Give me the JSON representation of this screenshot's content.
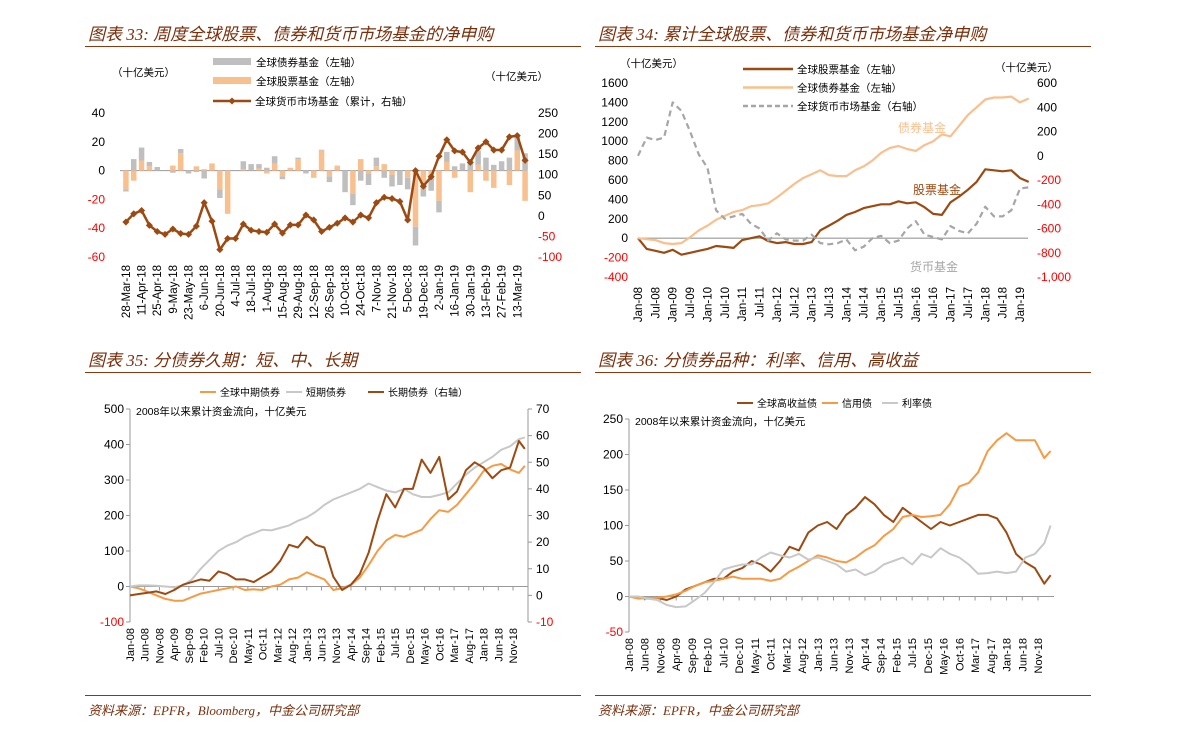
{
  "colors": {
    "brown": "#9C4A12",
    "light_orange": "#F9C08F",
    "orange": "#F59B45",
    "gray": "#BFBFBF",
    "light_gray": "#C8C8C8",
    "negative": "#FF0000",
    "title": "#7A2F0B"
  },
  "fig33": {
    "title": "图表 33: 周度全球股票、债券和货币市场基金的净申购",
    "chart_data": {
      "type": "bar",
      "left_unit": "（十亿美元）",
      "right_unit": "（十亿美元）",
      "ylim_left": [
        -60,
        40
      ],
      "yticks_left": [
        40,
        20,
        0,
        -20,
        -40,
        -60
      ],
      "ylim_right": [
        -100,
        250
      ],
      "yticks_right": [
        250,
        200,
        150,
        100,
        50,
        0,
        -50,
        -100
      ],
      "tick_labels": [
        "28-Mar-18",
        "11-Apr-18",
        "25-Apr-18",
        "9-May-18",
        "23-May-18",
        "6-Jun-18",
        "20-Jun-18",
        "4-Jul-18",
        "18-Jul-18",
        "1-Aug-18",
        "15-Aug-18",
        "29-Aug-18",
        "12-Sep-18",
        "26-Sep-18",
        "10-Oct-18",
        "24-Oct-18",
        "7-Nov-18",
        "21-Nov-18",
        "5-Dec-18",
        "19-Dec-18",
        "2-Jan-19",
        "16-Jan-19",
        "30-Jan-19",
        "13-Feb-19",
        "27-Feb-19",
        "13-Mar-19"
      ],
      "series": [
        {
          "name": "全球债券基金（左轴）",
          "kind": "bar",
          "color": "#BFBFBF",
          "values": [
            -1.5,
            8,
            9,
            3,
            2.5,
            0,
            -1.5,
            3,
            -2,
            -1,
            -5.5,
            0,
            -6,
            0,
            0,
            5.5,
            4.5,
            3,
            2,
            5,
            -2,
            0,
            1,
            -2,
            0,
            0.5,
            -4,
            0,
            -15,
            -8,
            -7,
            -8,
            6,
            -5,
            -8,
            -10,
            -8,
            -13,
            -9,
            -9,
            -8,
            7,
            3,
            5,
            5,
            10,
            9,
            4,
            6.5,
            9,
            10,
            12
          ]
        },
        {
          "name": "全球股票基金（左轴）",
          "kind": "bar",
          "color": "#F9C08F",
          "values": [
            -13,
            -7,
            7,
            3,
            0,
            0,
            3.5,
            12,
            0,
            3,
            1,
            5,
            -13,
            -30,
            0,
            1,
            0,
            1.5,
            -2,
            5,
            -4,
            2,
            8,
            0,
            -5,
            14,
            -4,
            3.5,
            0,
            -16,
            8,
            -2,
            3,
            4.5,
            -3,
            0,
            -5,
            -39,
            -9,
            -5,
            -21,
            6,
            -5,
            0,
            -15,
            4,
            -7,
            -12,
            0,
            -10,
            14,
            -21
          ]
        },
        {
          "name": "全球货币市场基金（累计，右轴）",
          "kind": "line",
          "color": "#9C4A12",
          "values": [
            -15,
            5,
            13,
            -23,
            -38,
            -45,
            -32,
            -43,
            -45,
            -25,
            32,
            -13,
            -82,
            -55,
            -55,
            -20,
            -35,
            -38,
            -40,
            -20,
            -42,
            -22,
            -22,
            2,
            -10,
            -38,
            -28,
            -18,
            -5,
            -15,
            2,
            -5,
            32,
            45,
            42,
            35,
            -10,
            110,
            72,
            95,
            145,
            185,
            158,
            155,
            130,
            165,
            180,
            160,
            160,
            192,
            195,
            135
          ]
        }
      ]
    }
  },
  "fig34": {
    "title": "图表 34: 累计全球股票、债券和货币市场基金净申购",
    "chart_data": {
      "type": "line",
      "left_unit": "（十亿美元）",
      "right_unit": "（十亿美元）",
      "ylim_left": [
        -400,
        1600
      ],
      "yticks_left": [
        1600,
        1400,
        1200,
        1000,
        800,
        600,
        400,
        200,
        0,
        -200,
        -400
      ],
      "ylim_right": [
        -1000,
        600
      ],
      "yticks_right": [
        "600",
        "400",
        "200",
        "0",
        "-200",
        "-400",
        "-600",
        "-800",
        "-1,000"
      ],
      "tick_labels": [
        "Jan-08",
        "Jul-08",
        "Jan-09",
        "Jul-09",
        "Jan-10",
        "Jul-10",
        "Jan-11",
        "Jul-11",
        "Jan-12",
        "Jul-12",
        "Jan-13",
        "Jul-13",
        "Jan-14",
        "Jul-14",
        "Jan-15",
        "Jul-15",
        "Jan-16",
        "Jul-16",
        "Jan-17",
        "Jul-17",
        "Jan-18",
        "Jul-18",
        "Jan-19"
      ],
      "x": [
        "2008-01",
        "2008-04",
        "2008-07",
        "2008-10",
        "2009-01",
        "2009-04",
        "2009-07",
        "2009-10",
        "2010-01",
        "2010-04",
        "2010-07",
        "2010-10",
        "2011-01",
        "2011-04",
        "2011-07",
        "2011-10",
        "2012-01",
        "2012-04",
        "2012-07",
        "2012-10",
        "2013-01",
        "2013-04",
        "2013-07",
        "2013-10",
        "2014-01",
        "2014-04",
        "2014-07",
        "2014-10",
        "2015-01",
        "2015-04",
        "2015-07",
        "2015-10",
        "2016-01",
        "2016-04",
        "2016-07",
        "2016-10",
        "2017-01",
        "2017-04",
        "2017-07",
        "2017-10",
        "2018-01",
        "2018-04",
        "2018-07",
        "2018-10",
        "2019-01",
        "2019-04"
      ],
      "series": [
        {
          "name": "全球股票基金（左轴）",
          "axis": "left",
          "color": "#9C4A12",
          "dash": false,
          "values": [
            0,
            -110,
            -130,
            -150,
            -120,
            -170,
            -150,
            -130,
            -110,
            -80,
            -90,
            -100,
            -20,
            0,
            20,
            -30,
            -50,
            -40,
            -60,
            -60,
            -40,
            80,
            130,
            180,
            240,
            270,
            310,
            330,
            350,
            350,
            380,
            360,
            370,
            320,
            250,
            240,
            370,
            430,
            500,
            580,
            710,
            700,
            690,
            700,
            620,
            580
          ]
        },
        {
          "name": "全球债券基金（左轴）",
          "axis": "left",
          "color": "#F9C08F",
          "dash": false,
          "values": [
            0,
            -10,
            -20,
            -50,
            -60,
            -50,
            10,
            80,
            130,
            190,
            230,
            270,
            290,
            330,
            340,
            360,
            420,
            490,
            560,
            620,
            660,
            700,
            650,
            640,
            640,
            700,
            740,
            800,
            880,
            930,
            950,
            920,
            900,
            960,
            1000,
            1070,
            1050,
            1160,
            1270,
            1350,
            1430,
            1450,
            1450,
            1460,
            1400,
            1440
          ]
        },
        {
          "name": "全球货币市场基金（右轴）",
          "axis": "right",
          "color": "#A6A6A6",
          "dash": true,
          "values": [
            0,
            150,
            130,
            150,
            440,
            370,
            200,
            10,
            -100,
            -450,
            -520,
            -500,
            -480,
            -560,
            -600,
            -700,
            -640,
            -690,
            -700,
            -700,
            -650,
            -720,
            -730,
            -720,
            -690,
            -780,
            -750,
            -680,
            -660,
            -720,
            -700,
            -600,
            -540,
            -650,
            -670,
            -690,
            -580,
            -620,
            -640,
            -560,
            -420,
            -500,
            -500,
            -450,
            -270,
            -260
          ]
        }
      ],
      "annotations": [
        {
          "text": "债券基金",
          "color": "#F9C08F"
        },
        {
          "text": "股票基金",
          "color": "#9C4A12"
        },
        {
          "text": "货币基金",
          "color": "#A6A6A6"
        }
      ]
    }
  },
  "fig35": {
    "title": "图表 35: 分债券久期：短、中、长期",
    "chart_data": {
      "type": "line",
      "note": "2008年以来累计资金流向，十亿美元",
      "ylim_left": [
        -100,
        500
      ],
      "yticks_left": [
        500,
        400,
        300,
        200,
        100,
        0,
        -100
      ],
      "ylim_right": [
        -10,
        70
      ],
      "yticks_right": [
        70,
        60,
        50,
        40,
        30,
        20,
        10,
        0,
        -10
      ],
      "tick_labels": [
        "Jan-08",
        "Jun-08",
        "Nov-08",
        "Apr-09",
        "Sep-09",
        "Feb-10",
        "Jul-10",
        "Dec-10",
        "May-11",
        "Oct-11",
        "Mar-12",
        "Aug-12",
        "Jan-13",
        "Jun-13",
        "Nov-13",
        "Apr-14",
        "Sep-14",
        "Feb-15",
        "Jul-15",
        "Dec-15",
        "May-16",
        "Oct-16",
        "Mar-17",
        "Aug-17",
        "Jan-18",
        "Jun-18",
        "Nov-18"
      ],
      "x": [
        "2008-01",
        "2008-04",
        "2008-07",
        "2008-10",
        "2009-01",
        "2009-04",
        "2009-07",
        "2009-10",
        "2010-01",
        "2010-04",
        "2010-07",
        "2010-10",
        "2011-01",
        "2011-04",
        "2011-07",
        "2011-10",
        "2012-01",
        "2012-04",
        "2012-07",
        "2012-10",
        "2013-01",
        "2013-04",
        "2013-07",
        "2013-10",
        "2014-01",
        "2014-04",
        "2014-07",
        "2014-10",
        "2015-01",
        "2015-04",
        "2015-07",
        "2015-10",
        "2016-01",
        "2016-04",
        "2016-07",
        "2016-10",
        "2017-01",
        "2017-04",
        "2017-07",
        "2017-10",
        "2018-01",
        "2018-04",
        "2018-07",
        "2018-10",
        "2019-01",
        "2019-03"
      ],
      "series": [
        {
          "name": "全球中期债券",
          "axis": "left",
          "color": "#F59B45",
          "values": [
            0,
            -5,
            -15,
            -25,
            -35,
            -40,
            -40,
            -30,
            -20,
            -15,
            -10,
            -5,
            0,
            -10,
            -8,
            -10,
            0,
            5,
            20,
            25,
            40,
            30,
            20,
            -10,
            -5,
            5,
            25,
            60,
            100,
            130,
            145,
            140,
            150,
            160,
            190,
            215,
            210,
            230,
            260,
            290,
            325,
            340,
            345,
            330,
            320,
            340
          ]
        },
        {
          "name": "短期债券",
          "axis": "left",
          "color": "#C8C8C8",
          "values": [
            0,
            3,
            3,
            2,
            0,
            -2,
            3,
            20,
            50,
            75,
            100,
            115,
            125,
            140,
            150,
            160,
            158,
            165,
            172,
            185,
            195,
            210,
            230,
            245,
            255,
            265,
            275,
            290,
            280,
            270,
            265,
            275,
            260,
            252,
            252,
            258,
            265,
            290,
            315,
            335,
            350,
            365,
            385,
            395,
            415,
            420
          ]
        },
        {
          "name": "长期债券（右轴）",
          "axis": "right",
          "color": "#9C4A12",
          "values": [
            0,
            0.5,
            1,
            1.5,
            0.5,
            2,
            4,
            5,
            6,
            5.5,
            9,
            8,
            6,
            6,
            5,
            7,
            9,
            13,
            19,
            18,
            22,
            19,
            18,
            7,
            2,
            4,
            8,
            16,
            28,
            38,
            33,
            40,
            40,
            51,
            46,
            52,
            36,
            39,
            47,
            50,
            48,
            44,
            47,
            48,
            58,
            55
          ]
        }
      ]
    }
  },
  "fig36": {
    "title": "图表 36: 分债券品种：利率、信用、高收益",
    "chart_data": {
      "type": "line",
      "note": "2008年以来累计资金流向，十亿美元",
      "ylim_left": [
        -50,
        250
      ],
      "yticks_left": [
        250,
        200,
        150,
        100,
        50,
        0,
        -50
      ],
      "tick_labels": [
        "Jan-08",
        "Jun-08",
        "Nov-08",
        "Apr-09",
        "Sep-09",
        "Feb-10",
        "Jul-10",
        "Dec-10",
        "May-11",
        "Oct-11",
        "Mar-12",
        "Aug-12",
        "Jan-13",
        "Jun-13",
        "Nov-13",
        "Apr-14",
        "Sep-14",
        "Feb-15",
        "Jul-15",
        "Dec-15",
        "May-16",
        "Oct-16",
        "Mar-17",
        "Aug-17",
        "Jan-18",
        "Jun-18",
        "Nov-18"
      ],
      "x": [
        "2008-01",
        "2008-04",
        "2008-07",
        "2008-10",
        "2009-01",
        "2009-04",
        "2009-07",
        "2009-10",
        "2010-01",
        "2010-04",
        "2010-07",
        "2010-10",
        "2011-01",
        "2011-04",
        "2011-07",
        "2011-10",
        "2012-01",
        "2012-04",
        "2012-07",
        "2012-10",
        "2013-01",
        "2013-04",
        "2013-07",
        "2013-10",
        "2014-01",
        "2014-04",
        "2014-07",
        "2014-10",
        "2015-01",
        "2015-04",
        "2015-07",
        "2015-10",
        "2016-01",
        "2016-04",
        "2016-07",
        "2016-10",
        "2017-01",
        "2017-04",
        "2017-07",
        "2017-10",
        "2018-01",
        "2018-04",
        "2018-07",
        "2018-10",
        "2019-01",
        "2019-03"
      ],
      "series": [
        {
          "name": "全球高收益债",
          "axis": "left",
          "color": "#9C4A12",
          "values": [
            0,
            -2,
            -3,
            -2,
            -5,
            0,
            10,
            15,
            20,
            25,
            25,
            35,
            40,
            50,
            45,
            35,
            50,
            70,
            65,
            90,
            100,
            105,
            95,
            115,
            125,
            140,
            130,
            115,
            105,
            125,
            115,
            105,
            95,
            105,
            100,
            105,
            110,
            115,
            115,
            110,
            90,
            60,
            48,
            40,
            18,
            30
          ]
        },
        {
          "name": "信用债",
          "axis": "left",
          "color": "#F59B45",
          "values": [
            0,
            -3,
            -2,
            -2,
            0,
            3,
            8,
            15,
            20,
            22,
            25,
            28,
            25,
            25,
            25,
            22,
            25,
            35,
            42,
            50,
            58,
            55,
            50,
            48,
            55,
            65,
            72,
            85,
            95,
            112,
            115,
            112,
            113,
            115,
            130,
            155,
            160,
            175,
            205,
            220,
            230,
            220,
            220,
            220,
            195,
            205
          ]
        },
        {
          "name": "利率债",
          "axis": "left",
          "color": "#C8C8C8",
          "values": [
            0,
            0,
            -3,
            -5,
            -12,
            -15,
            -14,
            -5,
            5,
            20,
            38,
            42,
            45,
            45,
            55,
            62,
            58,
            55,
            60,
            52,
            55,
            50,
            45,
            35,
            38,
            30,
            35,
            45,
            50,
            55,
            45,
            60,
            55,
            68,
            60,
            55,
            45,
            32,
            33,
            35,
            33,
            35,
            55,
            60,
            75,
            100
          ]
        }
      ]
    }
  },
  "sources": {
    "left": "资料来源：EPFR，Bloomberg，中金公司研究部",
    "right": "资料来源：EPFR，中金公司研究部"
  }
}
